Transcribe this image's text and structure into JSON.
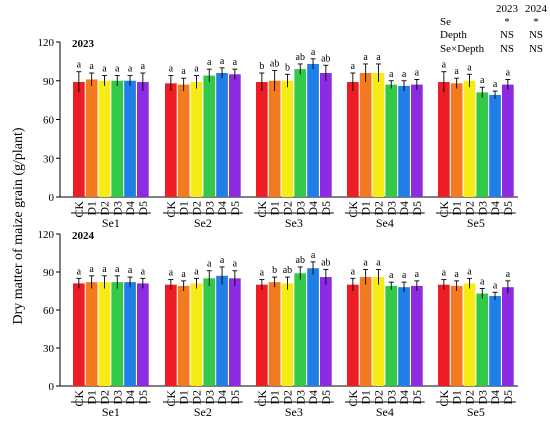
{
  "ylabel": "Dry matter of maize grain (g/plant)",
  "bar_colors": {
    "CK": "#ee1c24",
    "D1": "#f47a20",
    "D2": "#f6eb14",
    "D3": "#31c947",
    "D4": "#1f7ee8",
    "D5": "#8d2be2"
  },
  "significance": {
    "header": [
      "2023",
      "2024"
    ],
    "rows": [
      {
        "label": "Se",
        "values": [
          "*",
          "*"
        ]
      },
      {
        "label": "Depth",
        "values": [
          "NS",
          "NS"
        ]
      },
      {
        "label": "Se×Depth",
        "values": [
          "NS",
          "NS"
        ]
      }
    ]
  },
  "chart_data": [
    {
      "type": "bar",
      "year_label": "2023",
      "ylim": [
        0,
        120
      ],
      "yticks": [
        0,
        30,
        60,
        90,
        120
      ],
      "groups": [
        {
          "name": "Se1",
          "categories": [
            "CK",
            "D1",
            "D2",
            "D3",
            "D4",
            "D5"
          ],
          "values": [
            89,
            91,
            90,
            90,
            90,
            89
          ],
          "errors": [
            8,
            5,
            4,
            4,
            4,
            7
          ],
          "letters": [
            "a",
            "a",
            "a",
            "a",
            "a",
            "a"
          ]
        },
        {
          "name": "Se2",
          "categories": [
            "CK",
            "D1",
            "D2",
            "D3",
            "D4",
            "D5"
          ],
          "values": [
            88,
            87,
            89,
            94,
            96,
            95
          ],
          "errors": [
            6,
            5,
            5,
            5,
            4,
            4
          ],
          "letters": [
            "a",
            "a",
            "a",
            "a",
            "a",
            "a"
          ]
        },
        {
          "name": "Se3",
          "categories": [
            "CK",
            "D1",
            "D2",
            "D3",
            "D4",
            "D5"
          ],
          "values": [
            89,
            90,
            90,
            99,
            103,
            96
          ],
          "errors": [
            7,
            8,
            5,
            4,
            4,
            6
          ],
          "letters": [
            "b",
            "ab",
            "b",
            "ab",
            "a",
            "ab"
          ]
        },
        {
          "name": "Se4",
          "categories": [
            "CK",
            "D1",
            "D2",
            "D3",
            "D4",
            "D5"
          ],
          "values": [
            89,
            96,
            96,
            87,
            86,
            87
          ],
          "errors": [
            7,
            7,
            7,
            3,
            4,
            4
          ],
          "letters": [
            "a",
            "a",
            "a",
            "a",
            "a",
            "a"
          ]
        },
        {
          "name": "Se5",
          "categories": [
            "CK",
            "D1",
            "D2",
            "D3",
            "D4",
            "D5"
          ],
          "values": [
            89,
            88,
            90,
            81,
            79,
            87
          ],
          "errors": [
            8,
            4,
            5,
            4,
            3,
            4
          ],
          "letters": [
            "a",
            "a",
            "a",
            "a",
            "a",
            "a"
          ]
        }
      ]
    },
    {
      "type": "bar",
      "year_label": "2024",
      "ylim": [
        0,
        120
      ],
      "yticks": [
        0,
        30,
        60,
        90,
        120
      ],
      "groups": [
        {
          "name": "Se1",
          "categories": [
            "CK",
            "D1",
            "D2",
            "D3",
            "D4",
            "D5"
          ],
          "values": [
            81,
            82,
            82,
            82,
            82,
            81
          ],
          "errors": [
            4,
            5,
            5,
            5,
            4,
            4
          ],
          "letters": [
            "a",
            "a",
            "a",
            "a",
            "a",
            "a"
          ]
        },
        {
          "name": "Se2",
          "categories": [
            "CK",
            "D1",
            "D2",
            "D3",
            "D4",
            "D5"
          ],
          "values": [
            80,
            79,
            81,
            85,
            87,
            85
          ],
          "errors": [
            4,
            4,
            4,
            6,
            7,
            6
          ],
          "letters": [
            "a",
            "a",
            "a",
            "a",
            "a",
            "a"
          ]
        },
        {
          "name": "Se3",
          "categories": [
            "CK",
            "D1",
            "D2",
            "D3",
            "D4",
            "D5"
          ],
          "values": [
            80,
            82,
            81,
            89,
            93,
            86
          ],
          "errors": [
            4,
            4,
            5,
            5,
            5,
            6
          ],
          "letters": [
            "a",
            "b",
            "ab",
            "ab",
            "a",
            "ab"
          ]
        },
        {
          "name": "Se4",
          "categories": [
            "CK",
            "D1",
            "D2",
            "D3",
            "D4",
            "D5"
          ],
          "values": [
            80,
            86,
            86,
            79,
            78,
            79
          ],
          "errors": [
            5,
            6,
            6,
            3,
            4,
            4
          ],
          "letters": [
            "a",
            "a",
            "a",
            "a",
            "a",
            "a"
          ]
        },
        {
          "name": "Se5",
          "categories": [
            "CK",
            "D1",
            "D2",
            "D3",
            "D4",
            "D5"
          ],
          "values": [
            80,
            79,
            81,
            73,
            71,
            78
          ],
          "errors": [
            4,
            4,
            4,
            4,
            3,
            5
          ],
          "letters": [
            "a",
            "a",
            "a",
            "a",
            "a",
            "a"
          ]
        }
      ]
    }
  ]
}
